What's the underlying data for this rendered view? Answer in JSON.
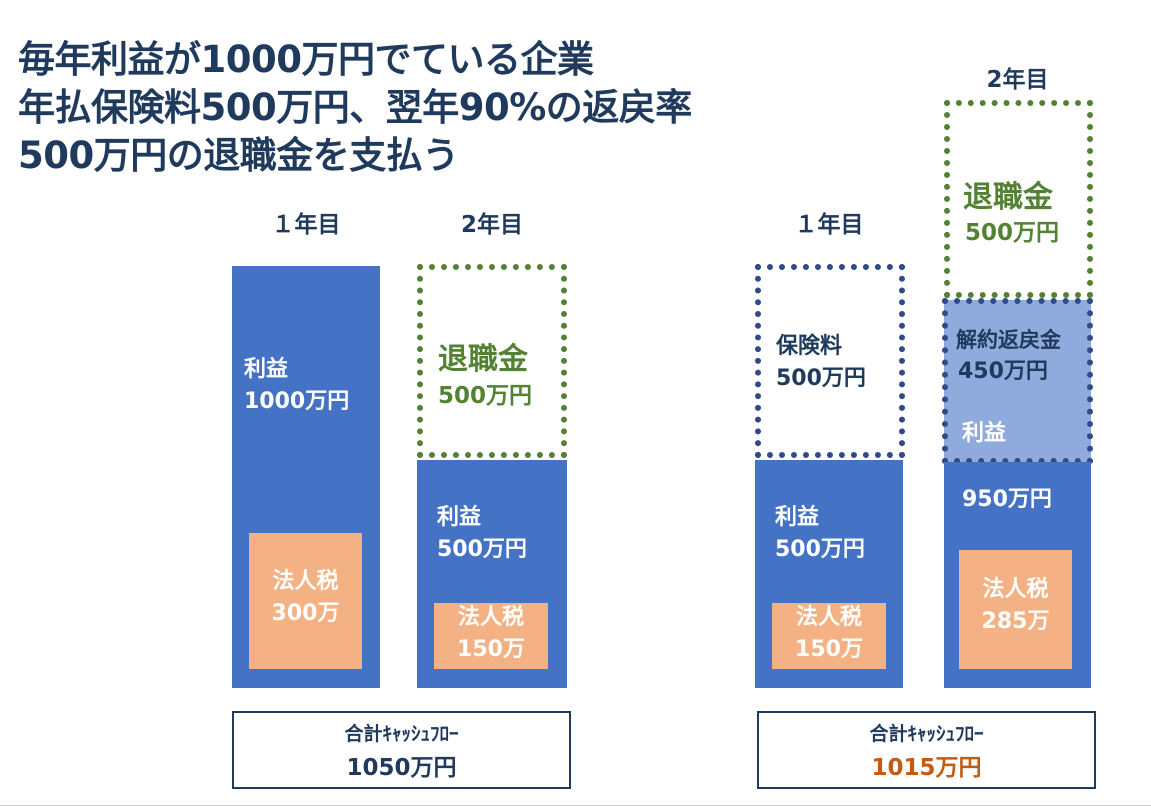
{
  "title": {
    "line1": "毎年利益が1000万円でている企業",
    "line2": "年払保険料500万円、翌年90%の返戻率",
    "line3": "500万円の退職金を支払う"
  },
  "left": {
    "year1_label": "１年目",
    "year2_label": "2年目",
    "y1_profit_label": "利益",
    "y1_profit_value": "1000万円",
    "y1_tax_label": "法人税",
    "y1_tax_value": "300万",
    "y2_retire_label": "退職金",
    "y2_retire_value": "500万円",
    "y2_profit_label": "利益",
    "y2_profit_value": "500万円",
    "y2_tax_label": "法人税",
    "y2_tax_value": "150万",
    "total_label": "合計ｷｬｯｼｭﾌﾛｰ",
    "total_value": "1050万円"
  },
  "right": {
    "year1_label": "１年目",
    "year2_label": "2年目",
    "y1_premium_label": "保険料",
    "y1_premium_value": "500万円",
    "y1_profit_label": "利益",
    "y1_profit_value": "500万円",
    "y1_tax_label": "法人税",
    "y1_tax_value": "150万",
    "y2_retire_label": "退職金",
    "y2_retire_value": "500万円",
    "y2_refund_label": "解約返戻金",
    "y2_refund_value": "450万円",
    "y2_profit_label": "利益",
    "y2_profit_value": "950万円",
    "y2_tax_label": "法人税",
    "y2_tax_value": "285万",
    "total_label": "合計ｷｬｯｼｭﾌﾛｰ",
    "total_value": "1015万円"
  },
  "colors": {
    "bar_blue": "#4472c4",
    "bar_light_blue": "#8faadc",
    "tax_orange": "#f4b183",
    "retire_green": "#548235",
    "title_navy": "#1f3a5c",
    "highlight_orange": "#c55a11"
  }
}
